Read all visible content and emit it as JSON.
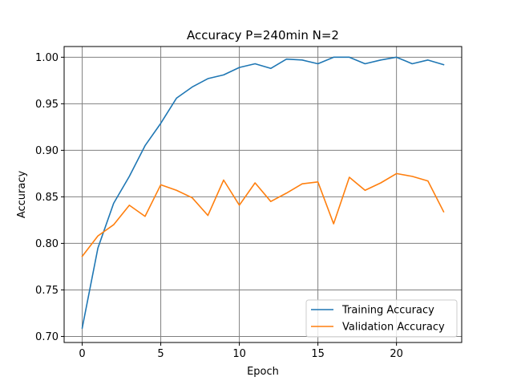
{
  "chart_data": {
    "type": "line",
    "title": "Accuracy P=240min N=2",
    "xlabel": "Epoch",
    "ylabel": "Accuracy",
    "xlim": [
      -1.15,
      24.15
    ],
    "ylim": [
      0.6935,
      1.0115
    ],
    "grid": true,
    "legend_position": "bottom-right",
    "x_ticks": [
      0,
      5,
      10,
      15,
      20
    ],
    "y_ticks": [
      0.7,
      0.75,
      0.8,
      0.85,
      0.9,
      0.95,
      1.0
    ],
    "x_tick_labels": [
      "0",
      "5",
      "10",
      "15",
      "20"
    ],
    "y_tick_labels": [
      "0.70",
      "0.75",
      "0.80",
      "0.85",
      "0.90",
      "0.95",
      "1.00"
    ],
    "x": [
      0,
      1,
      2,
      3,
      4,
      5,
      6,
      7,
      8,
      9,
      10,
      11,
      12,
      13,
      14,
      15,
      16,
      17,
      18,
      19,
      20,
      21,
      22,
      23
    ],
    "series": [
      {
        "name": "Training Accuracy",
        "color": "#1f77b4",
        "values": [
          0.709,
          0.795,
          0.843,
          0.872,
          0.905,
          0.929,
          0.956,
          0.968,
          0.977,
          0.981,
          0.989,
          0.993,
          0.988,
          0.998,
          0.997,
          0.993,
          1.0,
          1.0,
          0.993,
          0.997,
          1.0,
          0.993,
          0.997,
          0.992
        ]
      },
      {
        "name": "Validation Accuracy",
        "color": "#ff7f0e",
        "values": [
          0.786,
          0.808,
          0.82,
          0.841,
          0.829,
          0.863,
          0.857,
          0.849,
          0.83,
          0.868,
          0.841,
          0.865,
          0.845,
          0.854,
          0.864,
          0.866,
          0.821,
          0.871,
          0.857,
          0.865,
          0.875,
          0.872,
          0.867,
          0.834
        ]
      }
    ]
  }
}
